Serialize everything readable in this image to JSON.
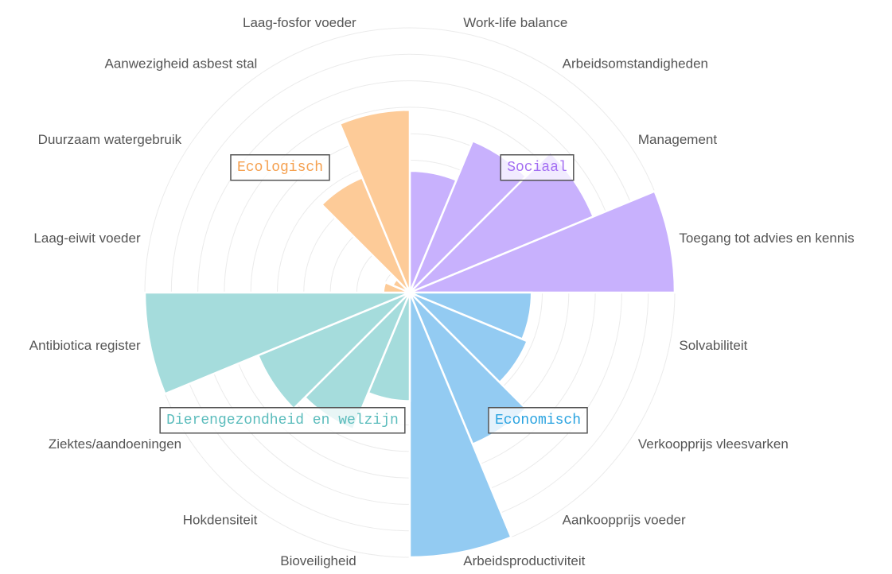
{
  "chart_data": {
    "type": "polar-bar",
    "categories": [
      "Work-life balance",
      "Arbeidsomstandigheden",
      "Management",
      "Toegang tot advies en kennis",
      "Solvabiliteit",
      "Verkoopprijs vleesvarken",
      "Aankoopprijs voeder",
      "Arbeidsproductiviteit",
      "Bioveiligheid",
      "Hokdensiteit",
      "Ziektes/aandoeningen",
      "Antibiotica register",
      "Laag-eiwit voeder",
      "Duurzaam watergebruik",
      "Aanwezigheid asbest stal",
      "Laag-fosfor voeder"
    ],
    "series": [
      {
        "name": "Sociaal",
        "color": "#c8b1fd",
        "label_color": "#a36ef2",
        "values": [
          4.6,
          6.2,
          7.5,
          10,
          null,
          null,
          null,
          null,
          null,
          null,
          null,
          null,
          null,
          null,
          null,
          null
        ]
      },
      {
        "name": "Economisch",
        "color": "#93cbf2",
        "label_color": "#2aa3e0",
        "values": [
          null,
          null,
          null,
          null,
          4.6,
          4.8,
          6.2,
          10,
          null,
          null,
          null,
          null,
          null,
          null,
          null,
          null
        ]
      },
      {
        "name": "Dierengezondheid en welzijn",
        "color": "#a5dcdc",
        "label_color": "#5bbcbc",
        "values": [
          null,
          null,
          null,
          null,
          null,
          null,
          null,
          null,
          4.1,
          5.6,
          6.2,
          10,
          null,
          null,
          null,
          null
        ]
      },
      {
        "name": "Ecologisch",
        "color": "#fdcb98",
        "label_color": "#f5a04f",
        "values": [
          null,
          null,
          null,
          null,
          null,
          null,
          null,
          null,
          null,
          null,
          null,
          null,
          1,
          0.7,
          4.7,
          6.9
        ]
      }
    ],
    "rlim": [
      0,
      10
    ],
    "rticks": [
      1,
      2,
      3,
      4,
      5,
      6,
      7,
      8,
      9,
      10
    ],
    "grid": true
  }
}
